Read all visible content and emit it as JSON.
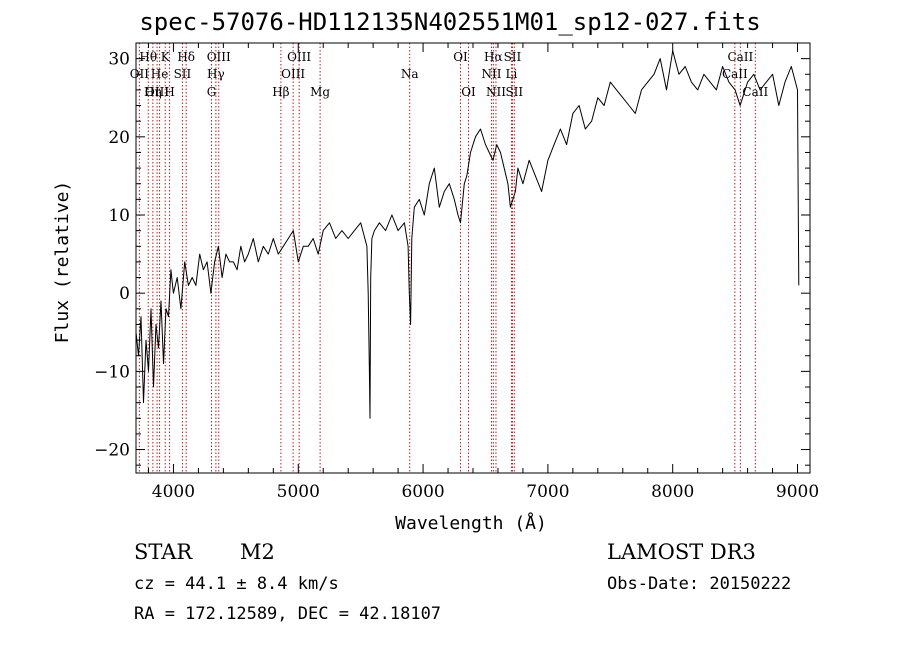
{
  "chart_data": {
    "type": "line",
    "title": "spec-57076-HD112135N402551M01_sp12-027.fits",
    "xlabel": "Wavelength (Å)",
    "ylabel": "Flux (relative)",
    "xlim": [
      3700,
      9100
    ],
    "ylim": [
      -23,
      32
    ],
    "xticks": [
      4000,
      5000,
      6000,
      7000,
      8000,
      9000
    ],
    "yticks": [
      -20,
      -10,
      0,
      10,
      20,
      30
    ],
    "series": [
      {
        "name": "flux",
        "x": [
          3700,
          3720,
          3740,
          3760,
          3780,
          3800,
          3820,
          3840,
          3860,
          3880,
          3900,
          3920,
          3940,
          3960,
          3980,
          4000,
          4030,
          4060,
          4090,
          4120,
          4150,
          4180,
          4210,
          4240,
          4270,
          4300,
          4330,
          4360,
          4390,
          4420,
          4450,
          4480,
          4510,
          4540,
          4570,
          4600,
          4640,
          4680,
          4720,
          4760,
          4800,
          4840,
          4880,
          4920,
          4960,
          5000,
          5040,
          5080,
          5120,
          5160,
          5200,
          5250,
          5300,
          5350,
          5400,
          5450,
          5500,
          5550,
          5560,
          5570,
          5575,
          5580,
          5590,
          5610,
          5650,
          5700,
          5750,
          5800,
          5850,
          5880,
          5890,
          5900,
          5910,
          5930,
          5970,
          6010,
          6050,
          6090,
          6130,
          6170,
          6210,
          6250,
          6280,
          6300,
          6330,
          6350,
          6380,
          6420,
          6460,
          6500,
          6530,
          6560,
          6590,
          6620,
          6650,
          6680,
          6700,
          6720,
          6740,
          6760,
          6800,
          6850,
          6900,
          6950,
          7000,
          7050,
          7100,
          7150,
          7200,
          7250,
          7300,
          7350,
          7400,
          7450,
          7500,
          7550,
          7600,
          7650,
          7700,
          7750,
          7800,
          7850,
          7900,
          7950,
          8000,
          8050,
          8100,
          8150,
          8200,
          8250,
          8300,
          8350,
          8400,
          8450,
          8500,
          8520,
          8540,
          8560,
          8600,
          8650,
          8700,
          8750,
          8800,
          8850,
          8900,
          8950,
          9000,
          9005,
          9010
        ],
        "values": [
          -5,
          -8,
          -3,
          -14,
          -6,
          -10,
          -2,
          -12,
          -4,
          -7,
          -1,
          -9,
          -2,
          -3,
          3,
          0,
          2,
          -2,
          4,
          1,
          2,
          1,
          5,
          3,
          4,
          0,
          4,
          6,
          2,
          5,
          4,
          4,
          3,
          6,
          4,
          5,
          7,
          4,
          6,
          5,
          7,
          5,
          6,
          7,
          8,
          4,
          6,
          6,
          7,
          5,
          8,
          9,
          7,
          8,
          7,
          8,
          9,
          6,
          0,
          -10,
          -16,
          2,
          7,
          8,
          9,
          8,
          10,
          8,
          9,
          6,
          0,
          -4,
          7,
          11,
          12,
          10,
          14,
          16,
          11,
          13,
          14,
          12,
          10,
          9,
          14,
          15,
          18,
          20,
          21,
          19,
          18,
          17,
          19,
          18,
          16,
          14,
          11,
          12,
          13,
          16,
          14,
          17,
          15,
          13,
          17,
          19,
          21,
          19,
          23,
          24,
          21,
          22,
          25,
          24,
          27,
          26,
          25,
          24,
          23,
          26,
          27,
          28,
          30,
          26,
          31,
          28,
          29,
          27,
          26,
          28,
          27,
          26,
          29,
          27,
          26,
          25,
          24,
          25,
          27,
          28,
          26,
          27,
          28,
          24,
          27,
          29,
          26,
          14,
          1
        ]
      }
    ],
    "line_markers": [
      {
        "label": "Hθ",
        "wavelength": 3798,
        "row": 1
      },
      {
        "label": "OII",
        "wavelength": 3727,
        "row": 2
      },
      {
        "label": "He",
        "wavelength": 3889,
        "row": 2
      },
      {
        "label": "OIII",
        "wavelength": 3869,
        "row": 3
      },
      {
        "label": "Hη",
        "wavelength": 3835,
        "row": 3
      },
      {
        "label": "K",
        "wavelength": 3934,
        "row": 1
      },
      {
        "label": "H",
        "wavelength": 3969,
        "row": 3
      },
      {
        "label": "SII",
        "wavelength": 4072,
        "row": 2
      },
      {
        "label": "Hδ",
        "wavelength": 4102,
        "row": 1
      },
      {
        "label": "OIII",
        "wavelength": 4363,
        "row": 1
      },
      {
        "label": "Hγ",
        "wavelength": 4340,
        "row": 2
      },
      {
        "label": "G",
        "wavelength": 4305,
        "row": 3
      },
      {
        "label": "Hβ",
        "wavelength": 4861,
        "row": 3
      },
      {
        "label": "OIII",
        "wavelength": 5007,
        "row": 1
      },
      {
        "label": "OIII",
        "wavelength": 4959,
        "row": 2
      },
      {
        "label": "Mg",
        "wavelength": 5175,
        "row": 3
      },
      {
        "label": "Na",
        "wavelength": 5893,
        "row": 2
      },
      {
        "label": "OI",
        "wavelength": 6300,
        "row": 1
      },
      {
        "label": "OI",
        "wavelength": 6364,
        "row": 3
      },
      {
        "label": "Hα",
        "wavelength": 6563,
        "row": 1
      },
      {
        "label": "SII",
        "wavelength": 6716,
        "row": 1
      },
      {
        "label": "NII",
        "wavelength": 6548,
        "row": 2
      },
      {
        "label": "Li",
        "wavelength": 6708,
        "row": 2
      },
      {
        "label": "NII",
        "wavelength": 6584,
        "row": 3
      },
      {
        "label": "SII",
        "wavelength": 6731,
        "row": 3
      },
      {
        "label": "CaII",
        "wavelength": 8542,
        "row": 1
      },
      {
        "label": "CaII",
        "wavelength": 8498,
        "row": 2
      },
      {
        "label": "CaII",
        "wavelength": 8662,
        "row": 3
      }
    ]
  },
  "info": {
    "object_class": "STAR",
    "subclass": "M2",
    "survey": "LAMOST DR3",
    "redshift_text": "cz = 44.1 ± 8.4 km/s",
    "obs_date": "Obs-Date: 20150222",
    "coordinates": "RA = 172.12589, DEC =  42.18107"
  },
  "colors": {
    "axis": "#000000",
    "spectrum": "#000000",
    "marker": "#b22222"
  }
}
